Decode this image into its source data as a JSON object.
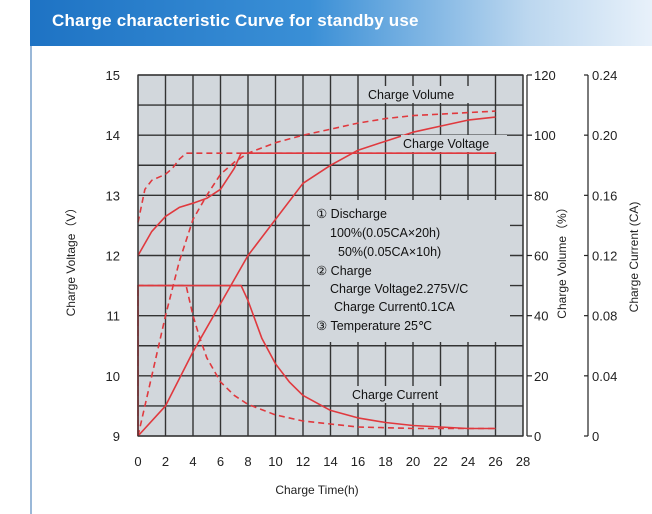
{
  "header": {
    "title": "Charge characteristic Curve for standby use"
  },
  "chart_data": {
    "type": "line",
    "title": "",
    "xlabel": "Charge Time(h)",
    "ylabel_left": "Charge Voltage（V）",
    "ylabel_right_1": "Charge Volume（%）",
    "ylabel_right_2": "Charge Current (CA)",
    "xlim": [
      0,
      28
    ],
    "xticks": [
      "0",
      "2",
      "4",
      "6",
      "8",
      "10",
      "12",
      "14",
      "16",
      "18",
      "20",
      "22",
      "24",
      "26",
      "28"
    ],
    "ylim_left": [
      9,
      15
    ],
    "yticks_left": [
      "9",
      "10",
      "11",
      "12",
      "13",
      "14",
      "15"
    ],
    "ylim_volume": [
      0,
      120
    ],
    "yticks_volume": [
      "0",
      "20",
      "40",
      "60",
      "80",
      "100",
      "120"
    ],
    "ylim_current": [
      0,
      0.24
    ],
    "yticks_current": [
      "0",
      "0.04",
      "0.08",
      "0.12",
      "0.16",
      "0.20",
      "0.24"
    ],
    "grid": true,
    "line_color": "#e0393e",
    "grid_color": "#333333",
    "plot_bg": "#d2d7dc",
    "curve_labels": {
      "volume": "Charge Volume",
      "voltage": "Charge Voltage",
      "current": "Charge Current"
    },
    "annotation": [
      "① Discharge",
      "100%(0.05CA×20h)",
      "50%(0.05CA×10h)",
      "② Charge",
      "Charge Voltage2.275V/C",
      "Charge Current0.1CA",
      "③ Temperature 25℃"
    ],
    "series": [
      {
        "key": "voltage",
        "style": "solid",
        "axis": "left",
        "points": [
          [
            0,
            12.0
          ],
          [
            1,
            12.4
          ],
          [
            2,
            12.65
          ],
          [
            3,
            12.8
          ],
          [
            4,
            12.87
          ],
          [
            5,
            12.95
          ],
          [
            6,
            13.1
          ],
          [
            7,
            13.45
          ],
          [
            7.5,
            13.7
          ],
          [
            26,
            13.7
          ]
        ]
      },
      {
        "key": "voltage",
        "style": "dashed",
        "axis": "left",
        "points": [
          [
            0,
            12.55
          ],
          [
            0.5,
            13.1
          ],
          [
            1,
            13.25
          ],
          [
            1.5,
            13.3
          ],
          [
            2,
            13.35
          ],
          [
            2.5,
            13.45
          ],
          [
            3,
            13.6
          ],
          [
            3.5,
            13.7
          ],
          [
            26,
            13.7
          ]
        ]
      },
      {
        "key": "volume",
        "style": "solid",
        "axis": "volume",
        "points": [
          [
            0,
            0
          ],
          [
            2,
            10
          ],
          [
            4,
            28
          ],
          [
            6,
            44
          ],
          [
            8,
            60
          ],
          [
            9,
            66
          ],
          [
            10,
            72
          ],
          [
            12,
            84
          ],
          [
            14,
            90
          ],
          [
            16,
            95
          ],
          [
            18,
            98
          ],
          [
            20,
            101
          ],
          [
            22,
            103
          ],
          [
            24,
            105
          ],
          [
            26,
            106
          ]
        ]
      },
      {
        "key": "volume",
        "style": "dashed",
        "axis": "volume",
        "points": [
          [
            0,
            0
          ],
          [
            1,
            20
          ],
          [
            2,
            40
          ],
          [
            3,
            58
          ],
          [
            4,
            72
          ],
          [
            5,
            80
          ],
          [
            6,
            87
          ],
          [
            7,
            91
          ],
          [
            8,
            94
          ],
          [
            10,
            97.5
          ],
          [
            12,
            100
          ],
          [
            14,
            102
          ],
          [
            16,
            104
          ],
          [
            18,
            105.5
          ],
          [
            20,
            106.5
          ],
          [
            22,
            107
          ],
          [
            24,
            107.5
          ],
          [
            26,
            108
          ]
        ]
      },
      {
        "key": "current",
        "style": "solid",
        "axis": "current",
        "points": [
          [
            0,
            0
          ],
          [
            0,
            0.1
          ],
          [
            7.5,
            0.1
          ],
          [
            8,
            0.09
          ],
          [
            9,
            0.065
          ],
          [
            10,
            0.048
          ],
          [
            11,
            0.036
          ],
          [
            12,
            0.027
          ],
          [
            14,
            0.017
          ],
          [
            16,
            0.012
          ],
          [
            18,
            0.009
          ],
          [
            20,
            0.007
          ],
          [
            22,
            0.006
          ],
          [
            24,
            0.005
          ],
          [
            26,
            0.005
          ]
        ]
      },
      {
        "key": "current",
        "style": "dashed",
        "axis": "current",
        "points": [
          [
            0,
            0
          ],
          [
            0,
            0.1
          ],
          [
            3.5,
            0.1
          ],
          [
            4,
            0.08
          ],
          [
            4.5,
            0.065
          ],
          [
            5,
            0.052
          ],
          [
            6,
            0.036
          ],
          [
            7,
            0.027
          ],
          [
            8,
            0.021
          ],
          [
            10,
            0.014
          ],
          [
            12,
            0.01
          ],
          [
            14,
            0.008
          ],
          [
            16,
            0.006
          ],
          [
            18,
            0.0055
          ],
          [
            20,
            0.005
          ],
          [
            22,
            0.005
          ],
          [
            24,
            0.005
          ],
          [
            26,
            0.005
          ]
        ]
      }
    ]
  }
}
